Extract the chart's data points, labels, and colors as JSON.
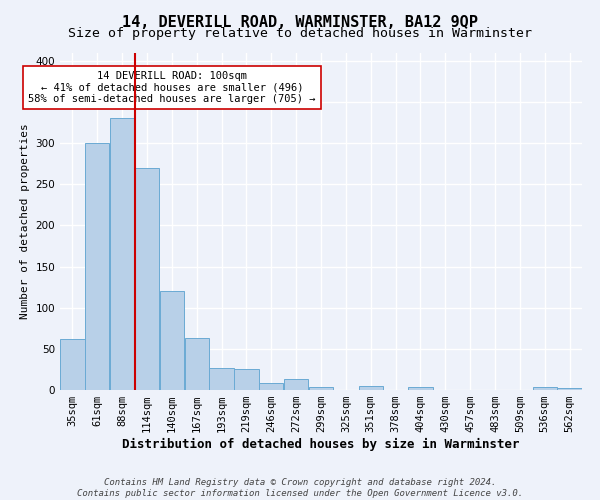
{
  "title": "14, DEVERILL ROAD, WARMINSTER, BA12 9QP",
  "subtitle": "Size of property relative to detached houses in Warminster",
  "xlabel": "Distribution of detached houses by size in Warminster",
  "ylabel": "Number of detached properties",
  "categories": [
    "35sqm",
    "61sqm",
    "88sqm",
    "114sqm",
    "140sqm",
    "167sqm",
    "193sqm",
    "219sqm",
    "246sqm",
    "272sqm",
    "299sqm",
    "325sqm",
    "351sqm",
    "378sqm",
    "404sqm",
    "430sqm",
    "457sqm",
    "483sqm",
    "509sqm",
    "536sqm",
    "562sqm"
  ],
  "values": [
    62,
    300,
    330,
    270,
    120,
    63,
    27,
    25,
    8,
    13,
    4,
    0,
    5,
    0,
    4,
    0,
    0,
    0,
    0,
    4,
    3
  ],
  "bar_color": "#b8d0e8",
  "bar_edge_color": "#6aaad4",
  "vline_color": "#cc0000",
  "annotation_text": "14 DEVERILL ROAD: 100sqm\n← 41% of detached houses are smaller (496)\n58% of semi-detached houses are larger (705) →",
  "annotation_box_facecolor": "white",
  "annotation_box_edgecolor": "#cc0000",
  "ylim": [
    0,
    410
  ],
  "yticks": [
    0,
    50,
    100,
    150,
    200,
    250,
    300,
    350,
    400
  ],
  "footnote_line1": "Contains HM Land Registry data © Crown copyright and database right 2024.",
  "footnote_line2": "Contains public sector information licensed under the Open Government Licence v3.0.",
  "background_color": "#eef2fa",
  "grid_color": "#ffffff",
  "title_fontsize": 11,
  "subtitle_fontsize": 9.5,
  "xlabel_fontsize": 9,
  "ylabel_fontsize": 8,
  "tick_fontsize": 7.5,
  "footnote_fontsize": 6.5,
  "annotation_fontsize": 7.5
}
